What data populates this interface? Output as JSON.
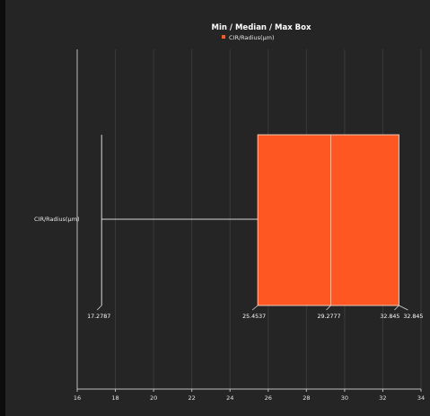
{
  "chart_data": {
    "type": "boxplot",
    "title": "Min / Median / Max Box",
    "legend": {
      "placement": "top-center",
      "entries": [
        "CIR/Radius(μm)"
      ]
    },
    "category_label": "CIR/Radius(μm)",
    "orientation": "horizontal",
    "series": [
      {
        "name": "CIR/Radius(μm)",
        "min": 17.2787,
        "q1": 25.4537,
        "median": 29.2777,
        "q3": 32.845,
        "max": 32.845,
        "labels": [
          "17.2787",
          "25.4537",
          "29.2777",
          "32.845",
          "32.845"
        ]
      }
    ],
    "xlim": [
      16,
      34
    ],
    "x_ticks": [
      16,
      18,
      20,
      22,
      24,
      26,
      28,
      30,
      32,
      34
    ],
    "grid": true,
    "colors": {
      "box": "#ff5722",
      "box_edge": "#f0c8b8",
      "whisker": "#d8d8d8",
      "grid": "#3a3a3a",
      "axis": "#bdbdbd",
      "text": "#ffffff",
      "background": "#252525"
    }
  }
}
